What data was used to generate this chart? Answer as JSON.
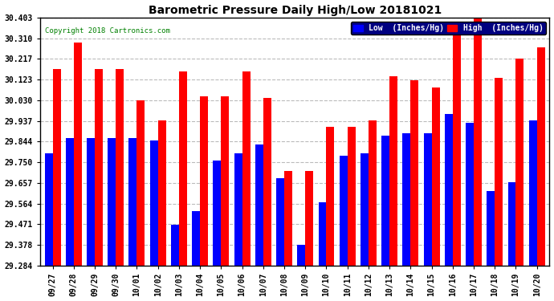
{
  "title": "Barometric Pressure Daily High/Low 20181021",
  "copyright": "Copyright 2018 Cartronics.com",
  "categories": [
    "09/27",
    "09/28",
    "09/29",
    "09/30",
    "10/01",
    "10/02",
    "10/03",
    "10/04",
    "10/05",
    "10/06",
    "10/07",
    "10/08",
    "10/09",
    "10/10",
    "10/11",
    "10/12",
    "10/13",
    "10/14",
    "10/15",
    "10/16",
    "10/17",
    "10/18",
    "10/19",
    "10/20"
  ],
  "low": [
    29.79,
    29.86,
    29.86,
    29.86,
    29.86,
    29.85,
    29.47,
    29.53,
    29.76,
    29.79,
    29.83,
    29.68,
    29.38,
    29.57,
    29.78,
    29.79,
    29.87,
    29.88,
    29.88,
    29.97,
    29.93,
    29.62,
    29.66,
    29.94
  ],
  "high": [
    30.17,
    30.29,
    30.17,
    30.17,
    30.03,
    29.94,
    30.16,
    30.05,
    30.05,
    30.16,
    30.04,
    29.71,
    29.71,
    29.91,
    29.91,
    29.94,
    30.14,
    30.12,
    30.09,
    30.38,
    30.4,
    30.13,
    30.22,
    30.27
  ],
  "low_color": "#0000ff",
  "high_color": "#ff0000",
  "bg_color": "#ffffff",
  "grid_color": "#bbbbbb",
  "yticks": [
    29.284,
    29.378,
    29.471,
    29.564,
    29.657,
    29.75,
    29.844,
    29.937,
    30.03,
    30.123,
    30.217,
    30.31,
    30.403
  ],
  "ymin": 29.284,
  "ymax": 30.403,
  "legend_low_label": "Low  (Inches/Hg)",
  "legend_high_label": "High  (Inches/Hg)"
}
